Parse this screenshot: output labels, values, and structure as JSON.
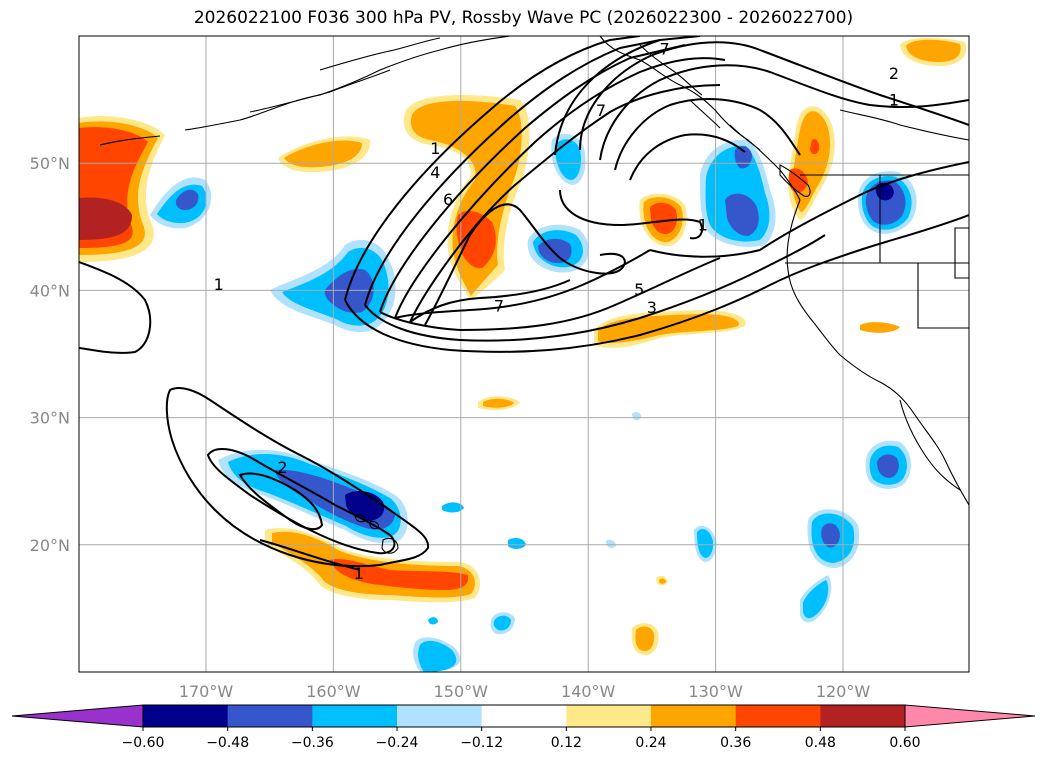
{
  "title": "2026022100 F036 300 hPa PV, Rossby Wave PC (2026022300 - 2026022700)",
  "map": {
    "latitudes": [
      {
        "value": 50,
        "label": "50°N"
      },
      {
        "value": 40,
        "label": "40°N"
      },
      {
        "value": 30,
        "label": "30°N"
      },
      {
        "value": 20,
        "label": "20°N"
      }
    ],
    "longitudes": [
      {
        "value": -170,
        "label": "170°W"
      },
      {
        "value": -160,
        "label": "160°W"
      },
      {
        "value": -150,
        "label": "150°W"
      },
      {
        "value": -140,
        "label": "140°W"
      },
      {
        "value": -130,
        "label": "130°W"
      },
      {
        "value": -120,
        "label": "120°W"
      }
    ],
    "contour_labels": [
      {
        "text": "1",
        "lon": -169,
        "lat": 40.5
      },
      {
        "text": "1",
        "lon": -152,
        "lat": 51.2
      },
      {
        "text": "4",
        "lon": -152,
        "lat": 49.3
      },
      {
        "text": "6",
        "lon": -151,
        "lat": 47.2
      },
      {
        "text": "7",
        "lon": -147,
        "lat": 38.8
      },
      {
        "text": "7",
        "lon": -139,
        "lat": 54.2
      },
      {
        "text": "5",
        "lon": -136,
        "lat": 40.1
      },
      {
        "text": "3",
        "lon": -135,
        "lat": 38.7
      },
      {
        "text": "1",
        "lon": -131,
        "lat": 45.2
      },
      {
        "text": "7",
        "lon": -134,
        "lat": 59
      },
      {
        "text": "2",
        "lon": -116,
        "lat": 57.1
      },
      {
        "text": "1",
        "lon": -116,
        "lat": 55
      },
      {
        "text": "2",
        "lon": -164,
        "lat": 26.1
      },
      {
        "text": "1",
        "lon": -158,
        "lat": 17.8
      }
    ]
  },
  "colorbar": {
    "ticks": [
      "−0.60",
      "−0.48",
      "−0.36",
      "−0.24",
      "−0.12",
      "0.12",
      "0.24",
      "0.36",
      "0.48",
      "0.60"
    ],
    "colors": [
      "#9932cc",
      "#00008b",
      "#3657cc",
      "#00bfff",
      "#b0e2ff",
      "#ffffff",
      "#ffe88a",
      "#ffa500",
      "#ff4500",
      "#b22222",
      "#ff88aa"
    ]
  }
}
